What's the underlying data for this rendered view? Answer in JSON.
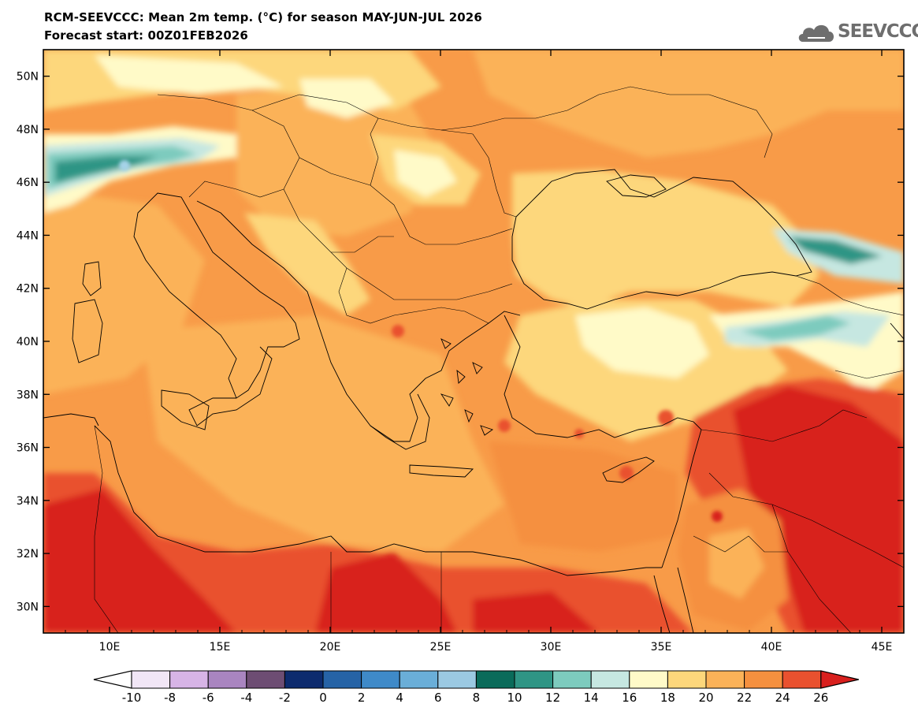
{
  "header": {
    "title": "RCM-SEEVCCC: Mean 2m temp. (°C) for season MAY-JUN-JUL 2026",
    "subtitle": "Forecast start: 00Z01FEB2026",
    "logo_text": "SEEVCCC"
  },
  "map": {
    "variable": "Mean 2m temperature",
    "units": "°C",
    "lon_range": [
      7,
      46
    ],
    "lat_range": [
      29,
      51
    ],
    "lat_ticks": [
      "30N",
      "32N",
      "34N",
      "36N",
      "38N",
      "40N",
      "42N",
      "44N",
      "46N",
      "48N",
      "50N"
    ],
    "lat_values": [
      30,
      32,
      34,
      36,
      38,
      40,
      42,
      44,
      46,
      48,
      50
    ],
    "lon_ticks": [
      "10E",
      "15E",
      "20E",
      "25E",
      "30E",
      "35E",
      "40E",
      "45E"
    ],
    "lon_values": [
      10,
      15,
      20,
      25,
      30,
      35,
      40,
      45
    ]
  },
  "colorbar": {
    "labels": [
      "-10",
      "-8",
      "-6",
      "-4",
      "-2",
      "0",
      "2",
      "4",
      "6",
      "8",
      "10",
      "12",
      "14",
      "16",
      "18",
      "20",
      "22",
      "24",
      "26"
    ],
    "colors": [
      "#f1e6f6",
      "#d7b4e6",
      "#a985c0",
      "#6d4d73",
      "#0d2b6e",
      "#2663a6",
      "#3f8ac8",
      "#6aaed8",
      "#9bc9e2",
      "#0a6b5a",
      "#2f9585",
      "#7dcbbe",
      "#c6e7e1",
      "#fffac8",
      "#fdd77b",
      "#fbb258",
      "#f5903f",
      "#e9512f"
    ],
    "low_arrow": "#ffffff",
    "high_arrow": "#d8201e"
  }
}
